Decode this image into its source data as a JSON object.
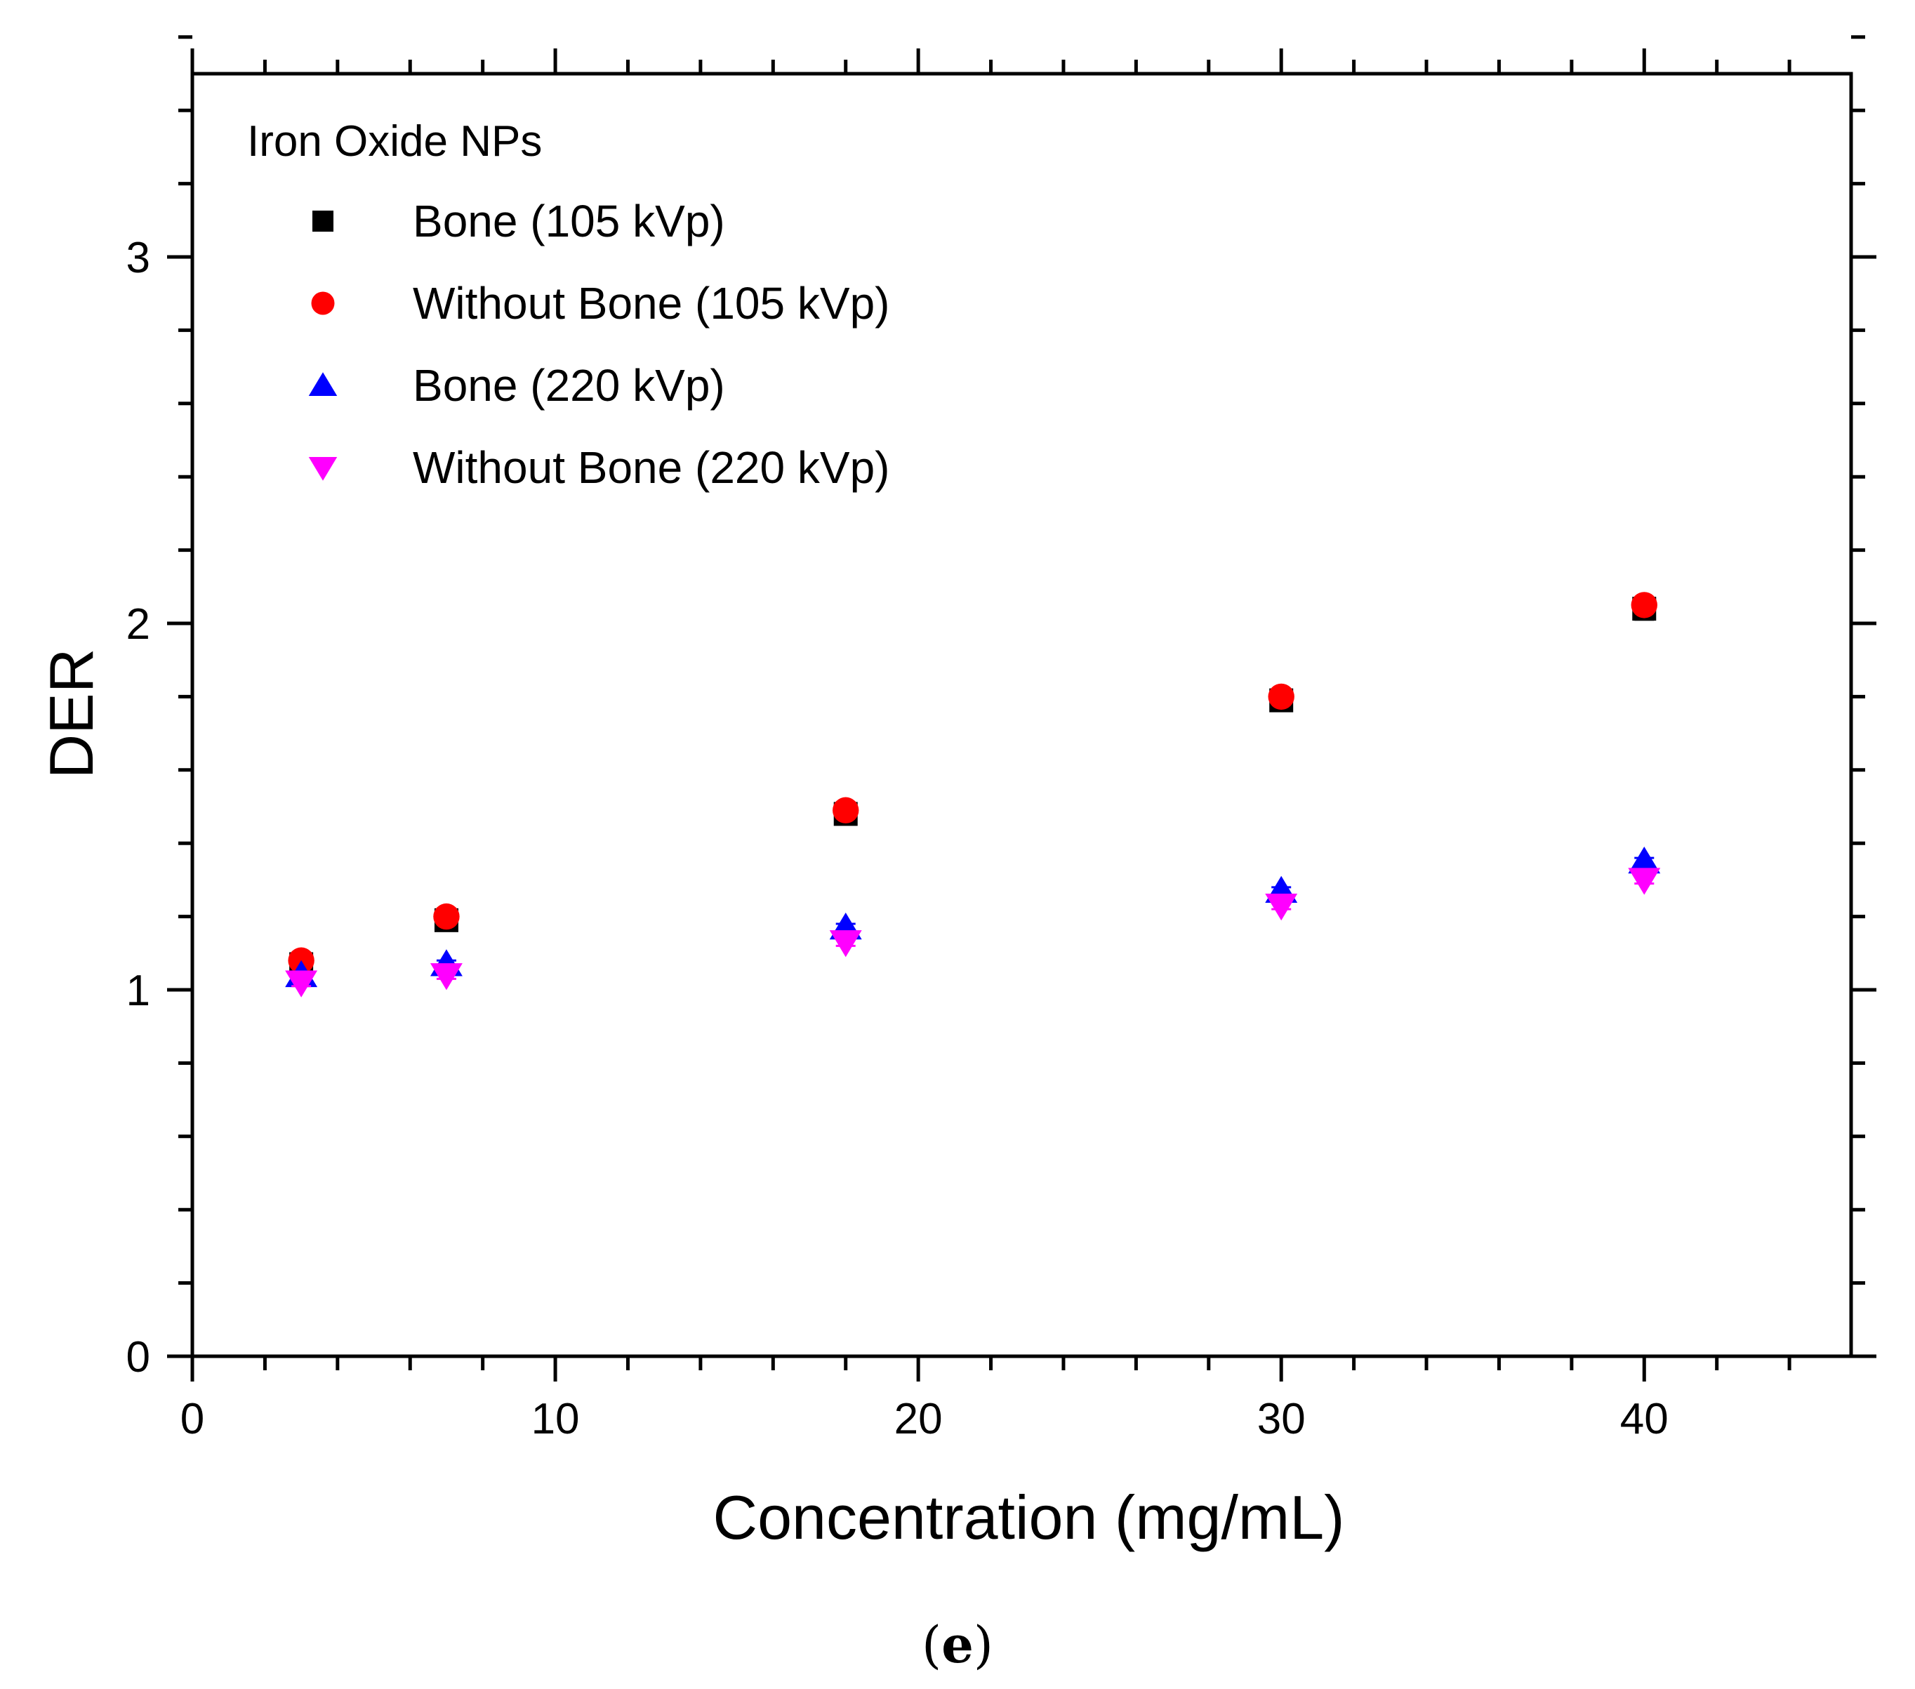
{
  "chart_data": {
    "type": "scatter",
    "title": "",
    "legend_title": "Iron Oxide NPs",
    "legend_position": "top-left",
    "xlabel": "Concentration (mg/mL)",
    "ylabel": "DER",
    "xlim": [
      0,
      45.7
    ],
    "ylim": [
      0,
      3.5
    ],
    "xticks": [
      0,
      10,
      20,
      30,
      40
    ],
    "yticks": [
      0,
      1,
      2,
      3
    ],
    "x_minor_step": 2,
    "y_minor_step": 0.2,
    "grid": false,
    "series": [
      {
        "name": "Bone (105 kVp)",
        "marker": "square",
        "color": "#000000",
        "x": [
          3,
          7,
          18,
          30,
          40
        ],
        "y": [
          1.07,
          1.19,
          1.48,
          1.79,
          2.04
        ],
        "error": [
          0.02,
          0.02,
          0.02,
          0.02,
          0.03
        ]
      },
      {
        "name": "Without Bone (105 kVp)",
        "marker": "circle",
        "color": "#ff0000",
        "x": [
          3,
          7,
          18,
          30,
          40
        ],
        "y": [
          1.08,
          1.2,
          1.49,
          1.8,
          2.05
        ],
        "error": [
          0.02,
          0.02,
          0.02,
          0.02,
          0.02
        ]
      },
      {
        "name": "Bone (220 kVp)",
        "marker": "triangle-up",
        "color": "#0000ff",
        "x": [
          3,
          7,
          18,
          30,
          40
        ],
        "y": [
          1.04,
          1.07,
          1.17,
          1.27,
          1.35
        ],
        "error": [
          0.01,
          0.01,
          0.01,
          0.01,
          0.01
        ]
      },
      {
        "name": "Without Bone (220 kVp)",
        "marker": "triangle-down",
        "color": "#ff00ff",
        "x": [
          3,
          7,
          18,
          30,
          40
        ],
        "y": [
          1.02,
          1.04,
          1.13,
          1.23,
          1.3
        ],
        "error": [
          0.01,
          0.01,
          0.01,
          0.01,
          0.01
        ]
      }
    ]
  },
  "caption": {
    "open": "(",
    "letter": "e",
    "close": ")"
  }
}
